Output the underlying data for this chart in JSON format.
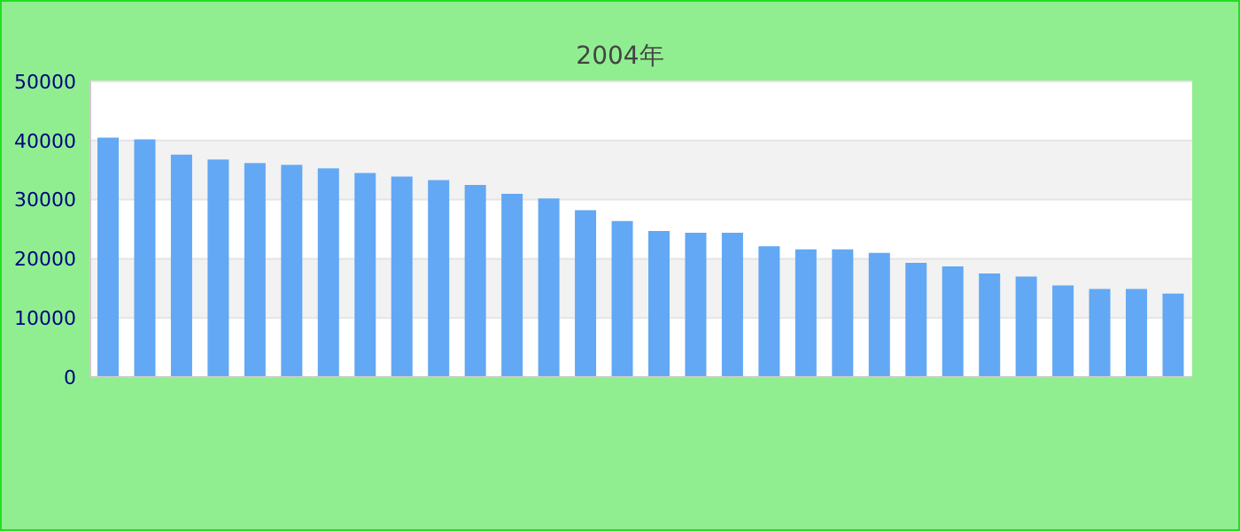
{
  "chart_data": {
    "type": "bar",
    "subtitle": "2004年",
    "categories": [
      null,
      null,
      null,
      null,
      null,
      null,
      null,
      null,
      null,
      null,
      null,
      null,
      null,
      null,
      null,
      null,
      null,
      null,
      null,
      null,
      null,
      null,
      null,
      null,
      null,
      null,
      null,
      null,
      null,
      null
    ],
    "values": [
      40500,
      40200,
      37600,
      36800,
      36200,
      35900,
      35300,
      34500,
      33900,
      33300,
      32500,
      31000,
      30200,
      28200,
      26400,
      24700,
      24400,
      24400,
      22100,
      21600,
      21600,
      21000,
      19300,
      18700,
      17500,
      17000,
      15500,
      14900,
      14900,
      14100
    ],
    "color": "#62a8f4",
    "ylim": [
      0,
      50000
    ],
    "yticks": [
      0,
      10000,
      20000,
      30000,
      40000,
      50000
    ],
    "grid": "y"
  }
}
